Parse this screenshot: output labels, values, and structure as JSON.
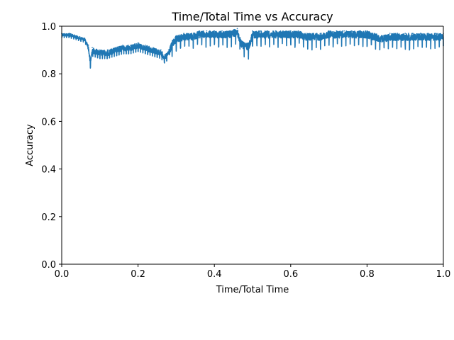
{
  "chart_data": {
    "type": "line",
    "title": "Time/Total Time vs Accuracy",
    "xlabel": "Time/Total Time",
    "ylabel": "Accuracy",
    "xlim": [
      0,
      1
    ],
    "ylim": [
      0,
      1
    ],
    "xticks": [
      "0.0",
      "0.2",
      "0.4",
      "0.6",
      "0.8",
      "1.0"
    ],
    "yticks": [
      "0.0",
      "0.2",
      "0.4",
      "0.6",
      "0.8",
      "1.0"
    ],
    "grid": false,
    "series": [
      {
        "color": "#1f77b4",
        "x": [
          0.0,
          0.02,
          0.04,
          0.06,
          0.07,
          0.075,
          0.08,
          0.1,
          0.12,
          0.14,
          0.16,
          0.18,
          0.2,
          0.22,
          0.24,
          0.26,
          0.27,
          0.28,
          0.29,
          0.3,
          0.32,
          0.34,
          0.36,
          0.38,
          0.4,
          0.42,
          0.44,
          0.46,
          0.47,
          0.48,
          0.49,
          0.5,
          0.52,
          0.54,
          0.56,
          0.58,
          0.6,
          0.62,
          0.64,
          0.66,
          0.68,
          0.7,
          0.72,
          0.74,
          0.76,
          0.78,
          0.8,
          0.82,
          0.84,
          0.86,
          0.88,
          0.9,
          0.92,
          0.94,
          0.96,
          0.98,
          1.0
        ],
        "y": [
          0.97,
          0.97,
          0.96,
          0.95,
          0.92,
          0.86,
          0.91,
          0.9,
          0.9,
          0.91,
          0.92,
          0.92,
          0.93,
          0.92,
          0.91,
          0.9,
          0.88,
          0.9,
          0.94,
          0.96,
          0.97,
          0.97,
          0.98,
          0.98,
          0.98,
          0.98,
          0.98,
          0.99,
          0.94,
          0.93,
          0.93,
          0.98,
          0.98,
          0.98,
          0.98,
          0.98,
          0.98,
          0.98,
          0.97,
          0.97,
          0.97,
          0.98,
          0.98,
          0.98,
          0.98,
          0.98,
          0.98,
          0.97,
          0.96,
          0.97,
          0.97,
          0.97,
          0.97,
          0.97,
          0.97,
          0.97,
          0.97
        ]
      }
    ]
  }
}
